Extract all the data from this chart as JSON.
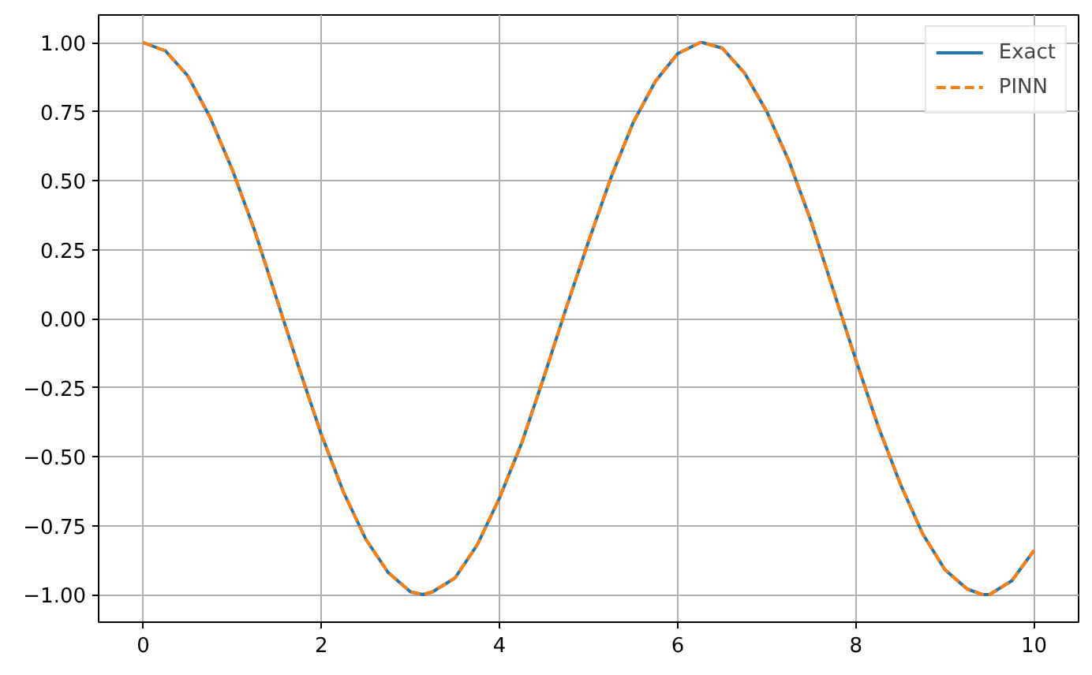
{
  "chart_data": {
    "type": "line",
    "x": [
      0,
      0.25,
      0.5,
      0.75,
      1.0,
      1.25,
      1.5,
      1.75,
      2.0,
      2.25,
      2.5,
      2.75,
      3.0,
      3.14,
      3.25,
      3.5,
      3.75,
      4.0,
      4.25,
      4.5,
      4.75,
      5.0,
      5.25,
      5.5,
      5.75,
      6.0,
      6.25,
      6.28,
      6.5,
      6.75,
      7.0,
      7.25,
      7.5,
      7.75,
      8.0,
      8.25,
      8.5,
      8.75,
      9.0,
      9.25,
      9.42,
      9.5,
      9.75,
      10.0
    ],
    "series": [
      {
        "name": "Exact",
        "color": "#1f77b4",
        "line_style": "solid",
        "values": [
          1.0,
          0.97,
          0.88,
          0.73,
          0.54,
          0.32,
          0.07,
          -0.18,
          -0.42,
          -0.63,
          -0.8,
          -0.92,
          -0.99,
          -1.0,
          -0.99,
          -0.94,
          -0.82,
          -0.65,
          -0.45,
          -0.21,
          0.04,
          0.28,
          0.51,
          0.71,
          0.86,
          0.96,
          1.0,
          1.0,
          0.98,
          0.89,
          0.75,
          0.57,
          0.35,
          0.1,
          -0.15,
          -0.39,
          -0.6,
          -0.78,
          -0.91,
          -0.98,
          -1.0,
          -1.0,
          -0.95,
          -0.84
        ]
      },
      {
        "name": "PINN",
        "color": "#ff7f0e",
        "line_style": "dashed",
        "values": [
          1.0,
          0.97,
          0.88,
          0.73,
          0.54,
          0.32,
          0.07,
          -0.18,
          -0.42,
          -0.63,
          -0.8,
          -0.92,
          -0.99,
          -1.0,
          -0.99,
          -0.94,
          -0.82,
          -0.65,
          -0.45,
          -0.21,
          0.04,
          0.28,
          0.51,
          0.71,
          0.86,
          0.96,
          1.0,
          1.0,
          0.98,
          0.89,
          0.75,
          0.57,
          0.35,
          0.1,
          -0.15,
          -0.39,
          -0.6,
          -0.78,
          -0.91,
          -0.98,
          -1.0,
          -1.0,
          -0.95,
          -0.84
        ]
      }
    ],
    "xlim": [
      -0.5,
      10.5
    ],
    "ylim": [
      -1.1,
      1.1
    ],
    "xticks": [
      0,
      2,
      4,
      6,
      8,
      10
    ],
    "yticks": [
      {
        "value": -1.0,
        "label": "−1.00"
      },
      {
        "value": -0.75,
        "label": "−0.75"
      },
      {
        "value": -0.5,
        "label": "−0.50"
      },
      {
        "value": -0.25,
        "label": "−0.25"
      },
      {
        "value": 0,
        "label": "0.00"
      },
      {
        "value": 0.25,
        "label": "0.25"
      },
      {
        "value": 0.5,
        "label": "0.50"
      },
      {
        "value": 0.75,
        "label": "0.75"
      },
      {
        "value": 1.0,
        "label": "1.00"
      }
    ],
    "grid": true,
    "legend": "top right"
  }
}
